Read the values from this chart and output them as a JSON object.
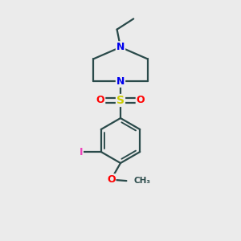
{
  "background_color": "#ebebeb",
  "bond_color": "#2a4a4a",
  "bond_width": 1.6,
  "atom_colors": {
    "N": "#0000ee",
    "S": "#cccc00",
    "O": "#ff0000",
    "I": "#ee44bb"
  },
  "figsize": [
    3.0,
    3.0
  ],
  "dpi": 100,
  "xlim": [
    0,
    10
  ],
  "ylim": [
    0,
    10
  ]
}
